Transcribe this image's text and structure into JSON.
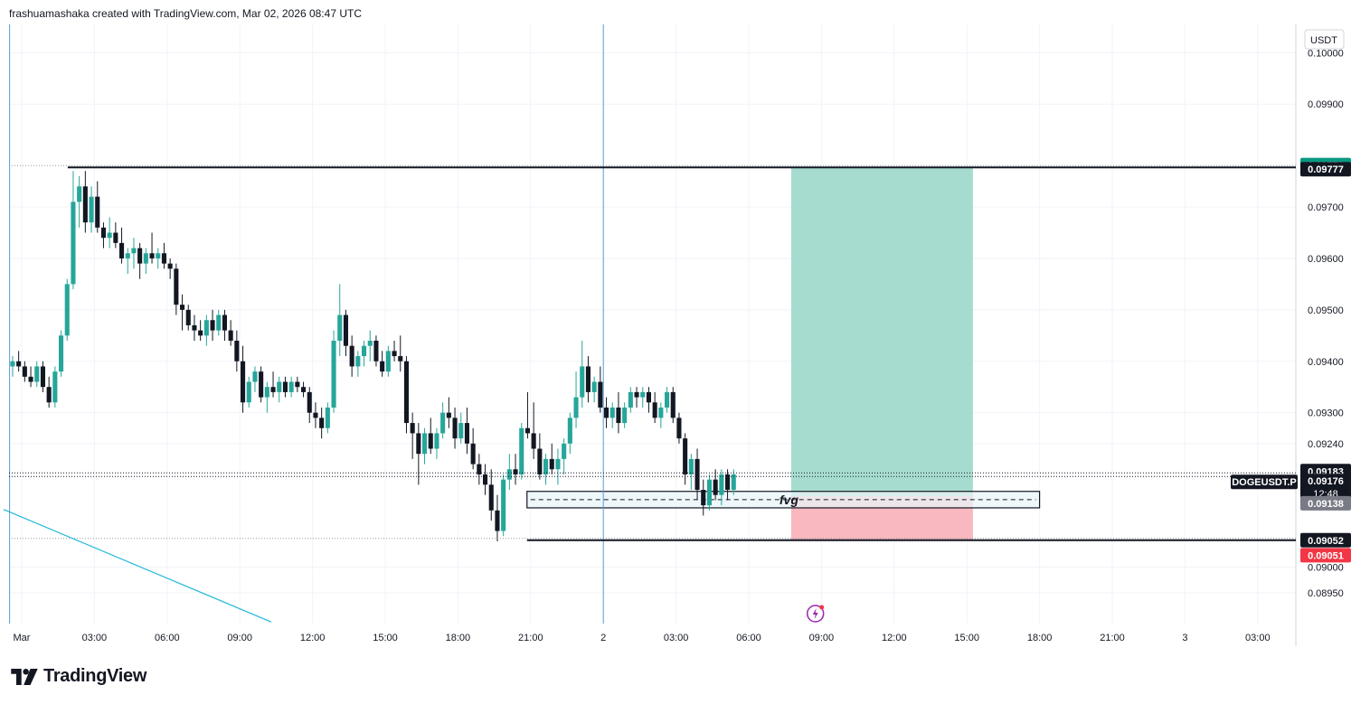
{
  "header": {
    "caption": "frashuamashaka created with TradingView.com, Mar 02, 2026 08:47 UTC"
  },
  "brand": {
    "name": "TradingView"
  },
  "colors": {
    "up": "#26a69a",
    "down": "#131722",
    "grid": "#f0f3fa",
    "profit_zone": "#a6dccf",
    "loss_zone": "#f9b8bf",
    "profit_label": "#089981",
    "loss_label": "#f23645",
    "fvg_fill": "#e8f4f8",
    "trendline": "#22b8d8",
    "marker": "#9c27b0"
  },
  "chart_data": {
    "type": "candlestick",
    "symbol_label": "DOGEUSDT.P",
    "currency": "USDT",
    "ylim": [
      0.0889,
      0.10055
    ],
    "y_ticks": [
      "0.10000",
      "0.09900",
      "0.09700",
      "0.09600",
      "0.09500",
      "0.09400",
      "0.09300",
      "0.09240",
      "0.09000",
      "0.08950"
    ],
    "x_ticks": [
      {
        "label": "Mar",
        "pos": 0
      },
      {
        "label": "03:00",
        "pos": 3
      },
      {
        "label": "06:00",
        "pos": 6
      },
      {
        "label": "09:00",
        "pos": 9
      },
      {
        "label": "12:00",
        "pos": 12
      },
      {
        "label": "15:00",
        "pos": 15
      },
      {
        "label": "18:00",
        "pos": 18
      },
      {
        "label": "21:00",
        "pos": 21
      },
      {
        "label": "2",
        "pos": 24
      },
      {
        "label": "03:00",
        "pos": 27
      },
      {
        "label": "06:00",
        "pos": 30
      },
      {
        "label": "09:00",
        "pos": 33
      },
      {
        "label": "12:00",
        "pos": 36
      },
      {
        "label": "15:00",
        "pos": 39
      },
      {
        "label": "18:00",
        "pos": 42
      },
      {
        "label": "21:00",
        "pos": 45
      },
      {
        "label": "3",
        "pos": 48
      },
      {
        "label": "03:00",
        "pos": 51
      }
    ],
    "candle_hours": 0.25,
    "candles_start_hour": -0.5,
    "candles": [
      [
        0.0939,
        0.0941,
        0.0937,
        0.094
      ],
      [
        0.094,
        0.0942,
        0.0938,
        0.0939
      ],
      [
        0.0939,
        0.094,
        0.0936,
        0.0937
      ],
      [
        0.0937,
        0.0939,
        0.0935,
        0.0936
      ],
      [
        0.0936,
        0.094,
        0.0935,
        0.0939
      ],
      [
        0.0939,
        0.094,
        0.0934,
        0.0935
      ],
      [
        0.0935,
        0.0937,
        0.0931,
        0.0932
      ],
      [
        0.0932,
        0.0939,
        0.0931,
        0.0938
      ],
      [
        0.0938,
        0.0946,
        0.0937,
        0.0945
      ],
      [
        0.0945,
        0.0956,
        0.0944,
        0.0955
      ],
      [
        0.0955,
        0.0977,
        0.0954,
        0.0971
      ],
      [
        0.0971,
        0.0976,
        0.0966,
        0.0974
      ],
      [
        0.0974,
        0.0977,
        0.0965,
        0.0967
      ],
      [
        0.0967,
        0.0974,
        0.0965,
        0.0972
      ],
      [
        0.0972,
        0.0975,
        0.0965,
        0.0966
      ],
      [
        0.0966,
        0.0967,
        0.0962,
        0.0964
      ],
      [
        0.0964,
        0.0968,
        0.0962,
        0.0965
      ],
      [
        0.0965,
        0.0967,
        0.0962,
        0.0963
      ],
      [
        0.0963,
        0.0966,
        0.0959,
        0.096
      ],
      [
        0.096,
        0.0962,
        0.0957,
        0.0961
      ],
      [
        0.0961,
        0.0964,
        0.0958,
        0.0962
      ],
      [
        0.0962,
        0.0963,
        0.0956,
        0.0959
      ],
      [
        0.0959,
        0.0962,
        0.0957,
        0.0961
      ],
      [
        0.0961,
        0.0965,
        0.0959,
        0.096
      ],
      [
        0.096,
        0.0962,
        0.0958,
        0.0961
      ],
      [
        0.0961,
        0.0963,
        0.0958,
        0.0959
      ],
      [
        0.0959,
        0.096,
        0.0956,
        0.0958
      ],
      [
        0.0958,
        0.0959,
        0.0949,
        0.0951
      ],
      [
        0.0951,
        0.0953,
        0.0946,
        0.095
      ],
      [
        0.095,
        0.0951,
        0.0946,
        0.0947
      ],
      [
        0.0947,
        0.0949,
        0.0944,
        0.0946
      ],
      [
        0.0946,
        0.0948,
        0.0944,
        0.0945
      ],
      [
        0.0945,
        0.0949,
        0.0943,
        0.0948
      ],
      [
        0.0948,
        0.095,
        0.0944,
        0.0946
      ],
      [
        0.0946,
        0.095,
        0.0945,
        0.0949
      ],
      [
        0.0949,
        0.095,
        0.0944,
        0.0946
      ],
      [
        0.0946,
        0.0948,
        0.0943,
        0.0944
      ],
      [
        0.0944,
        0.0946,
        0.0938,
        0.094
      ],
      [
        0.094,
        0.0943,
        0.093,
        0.0932
      ],
      [
        0.0932,
        0.0937,
        0.0931,
        0.0936
      ],
      [
        0.0936,
        0.0939,
        0.0934,
        0.0938
      ],
      [
        0.0938,
        0.0939,
        0.0932,
        0.0933
      ],
      [
        0.0933,
        0.0936,
        0.093,
        0.0935
      ],
      [
        0.0935,
        0.0938,
        0.0933,
        0.0934
      ],
      [
        0.0934,
        0.0937,
        0.0932,
        0.0936
      ],
      [
        0.0936,
        0.0937,
        0.0933,
        0.0934
      ],
      [
        0.0934,
        0.0937,
        0.0933,
        0.0936
      ],
      [
        0.0936,
        0.0937,
        0.0934,
        0.0935
      ],
      [
        0.0935,
        0.0936,
        0.0933,
        0.0934
      ],
      [
        0.0934,
        0.0935,
        0.0928,
        0.093
      ],
      [
        0.093,
        0.0932,
        0.0927,
        0.0929
      ],
      [
        0.0929,
        0.0931,
        0.0925,
        0.0927
      ],
      [
        0.0927,
        0.0932,
        0.0926,
        0.0931
      ],
      [
        0.0931,
        0.0946,
        0.093,
        0.0944
      ],
      [
        0.0944,
        0.0955,
        0.0941,
        0.0949
      ],
      [
        0.0949,
        0.095,
        0.0941,
        0.0943
      ],
      [
        0.0943,
        0.0945,
        0.0937,
        0.0939
      ],
      [
        0.0939,
        0.0942,
        0.0937,
        0.0941
      ],
      [
        0.0941,
        0.0944,
        0.0939,
        0.0943
      ],
      [
        0.0943,
        0.0946,
        0.094,
        0.0944
      ],
      [
        0.0944,
        0.0945,
        0.0939,
        0.094
      ],
      [
        0.094,
        0.0942,
        0.0937,
        0.0938
      ],
      [
        0.0938,
        0.0943,
        0.0937,
        0.0942
      ],
      [
        0.0942,
        0.0944,
        0.094,
        0.0941
      ],
      [
        0.0941,
        0.0945,
        0.0938,
        0.094
      ],
      [
        0.094,
        0.0941,
        0.0926,
        0.0928
      ],
      [
        0.0928,
        0.093,
        0.0921,
        0.0926
      ],
      [
        0.0926,
        0.0928,
        0.0916,
        0.0922
      ],
      [
        0.0922,
        0.0927,
        0.092,
        0.0926
      ],
      [
        0.0926,
        0.0929,
        0.0922,
        0.0923
      ],
      [
        0.0923,
        0.0927,
        0.0921,
        0.0926
      ],
      [
        0.0926,
        0.0932,
        0.0925,
        0.093
      ],
      [
        0.093,
        0.0933,
        0.0927,
        0.0929
      ],
      [
        0.0929,
        0.0931,
        0.0923,
        0.0925
      ],
      [
        0.0925,
        0.093,
        0.0924,
        0.0928
      ],
      [
        0.0928,
        0.0931,
        0.0922,
        0.0924
      ],
      [
        0.0924,
        0.0927,
        0.0919,
        0.092
      ],
      [
        0.092,
        0.0922,
        0.0916,
        0.0918
      ],
      [
        0.0918,
        0.092,
        0.0914,
        0.0916
      ],
      [
        0.0916,
        0.0919,
        0.0909,
        0.0911
      ],
      [
        0.0911,
        0.0914,
        0.0905,
        0.0907
      ],
      [
        0.0907,
        0.0918,
        0.0906,
        0.0917
      ],
      [
        0.0917,
        0.0922,
        0.0915,
        0.0919
      ],
      [
        0.0919,
        0.0922,
        0.0916,
        0.0918
      ],
      [
        0.0918,
        0.0928,
        0.0917,
        0.0927
      ],
      [
        0.0927,
        0.0934,
        0.0925,
        0.0926
      ],
      [
        0.0926,
        0.0932,
        0.0921,
        0.0923
      ],
      [
        0.0923,
        0.0926,
        0.0917,
        0.0918
      ],
      [
        0.0918,
        0.0922,
        0.0916,
        0.0921
      ],
      [
        0.0921,
        0.0924,
        0.0918,
        0.0919
      ],
      [
        0.0919,
        0.0923,
        0.0916,
        0.0921
      ],
      [
        0.0921,
        0.0925,
        0.0918,
        0.0924
      ],
      [
        0.0924,
        0.093,
        0.0922,
        0.0929
      ],
      [
        0.0929,
        0.0938,
        0.0927,
        0.0933
      ],
      [
        0.0933,
        0.0944,
        0.0931,
        0.0939
      ],
      [
        0.0939,
        0.0941,
        0.0932,
        0.0934
      ],
      [
        0.0934,
        0.0937,
        0.0932,
        0.0936
      ],
      [
        0.0936,
        0.0939,
        0.093,
        0.0931
      ],
      [
        0.0931,
        0.0933,
        0.0927,
        0.0929
      ],
      [
        0.0929,
        0.0932,
        0.0927,
        0.0931
      ],
      [
        0.0931,
        0.0934,
        0.0926,
        0.0928
      ],
      [
        0.0928,
        0.0932,
        0.0927,
        0.0931
      ],
      [
        0.0931,
        0.0935,
        0.093,
        0.0934
      ],
      [
        0.0934,
        0.0935,
        0.0931,
        0.0933
      ],
      [
        0.0933,
        0.0935,
        0.0931,
        0.0934
      ],
      [
        0.0934,
        0.0935,
        0.093,
        0.0932
      ],
      [
        0.0932,
        0.0934,
        0.0928,
        0.0929
      ],
      [
        0.0929,
        0.0932,
        0.0927,
        0.0931
      ],
      [
        0.0931,
        0.0935,
        0.093,
        0.0934
      ],
      [
        0.0934,
        0.0935,
        0.0928,
        0.0929
      ],
      [
        0.0929,
        0.093,
        0.0924,
        0.0925
      ],
      [
        0.0925,
        0.0926,
        0.0916,
        0.0918
      ],
      [
        0.0918,
        0.0922,
        0.0915,
        0.0921
      ],
      [
        0.0921,
        0.0923,
        0.0913,
        0.0915
      ],
      [
        0.0915,
        0.0917,
        0.091,
        0.0912
      ],
      [
        0.0912,
        0.0918,
        0.0911,
        0.0917
      ],
      [
        0.0917,
        0.0919,
        0.0913,
        0.0914
      ],
      [
        0.0914,
        0.0919,
        0.0912,
        0.0918
      ],
      [
        0.0918,
        0.0919,
        0.0913,
        0.0915
      ],
      [
        0.0915,
        0.0919,
        0.0914,
        0.0918
      ]
    ],
    "last_price": 0.09183,
    "horizontal_lines": [
      {
        "name": "range-high",
        "price": 0.09777
      },
      {
        "name": "range-low",
        "price": 0.09052
      }
    ],
    "vertical_lines": [
      -0.5,
      24
    ],
    "position": {
      "type": "long",
      "start_hour": 31.75,
      "end_hour": 39.25,
      "target": 0.09778,
      "entry": 0.09138,
      "stop": 0.09051
    },
    "fvg_zone": {
      "label": "fvg",
      "start_hour": 20.85,
      "end_hour": 42,
      "top": 0.09147,
      "bottom": 0.09115,
      "mid": 0.09131
    },
    "trendline": {
      "from": [
        -0.75,
        0.09112
      ],
      "to": [
        10.3,
        0.08893
      ]
    },
    "price_labels": {
      "target": "0.09778",
      "range_high": "0.09777",
      "last": "0.09183",
      "current": "0.09176",
      "countdown": "12:48",
      "entry": "0.09138",
      "range_low": "0.09052",
      "stop": "0.09051"
    }
  }
}
